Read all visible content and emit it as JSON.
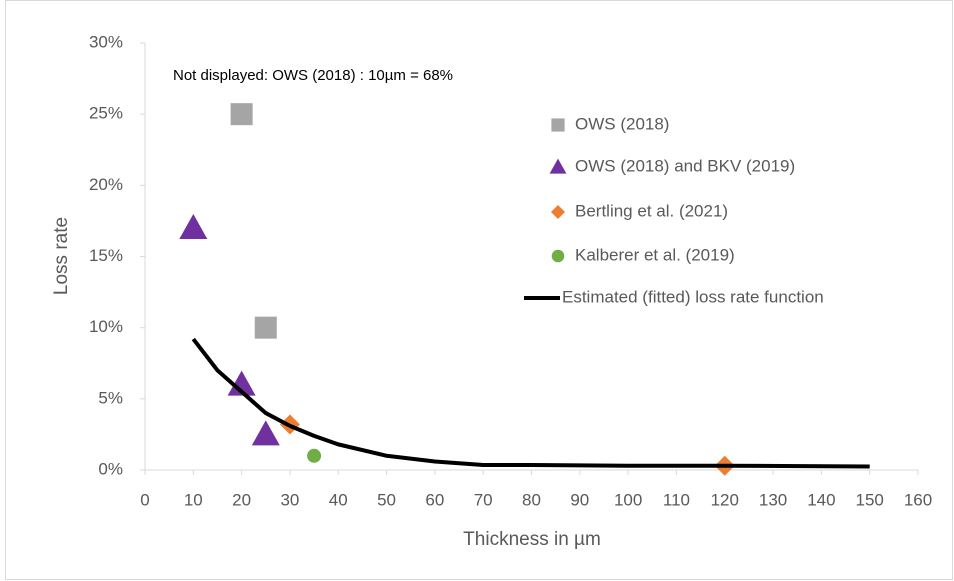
{
  "chart_data": {
    "type": "scatter",
    "annotation": "Not displayed: OWS (2018) : 10µm  = 68%",
    "xlabel": "Thickness in µm",
    "ylabel": "Loss rate",
    "xlim": [
      0,
      160
    ],
    "xticks": [
      0,
      10,
      20,
      30,
      40,
      50,
      60,
      70,
      80,
      90,
      100,
      110,
      120,
      130,
      140,
      150,
      160
    ],
    "ylim": [
      0,
      30
    ],
    "yticks": [
      {
        "value": 0,
        "label": "0%"
      },
      {
        "value": 5,
        "label": "5%"
      },
      {
        "value": 10,
        "label": "10%"
      },
      {
        "value": 15,
        "label": "15%"
      },
      {
        "value": 20,
        "label": "20%"
      },
      {
        "value": 25,
        "label": "25%"
      },
      {
        "value": 30,
        "label": "30%"
      }
    ],
    "legend": "right",
    "series": [
      {
        "name": "OWS (2018)",
        "marker": "square",
        "color": "#a5a5a5",
        "x": [
          20,
          25
        ],
        "values": [
          25,
          10
        ]
      },
      {
        "name": "OWS (2018) and BKV (2019)",
        "marker": "triangle",
        "color": "#7030a0",
        "x": [
          10,
          20,
          25
        ],
        "values": [
          17,
          6,
          2.5
        ]
      },
      {
        "name": "Bertling et al. (2021)",
        "marker": "diamond",
        "color": "#ed7d31",
        "x": [
          30,
          120
        ],
        "values": [
          3.2,
          0.3
        ]
      },
      {
        "name": "Kalberer et al. (2019)",
        "marker": "circle",
        "color": "#70ad47",
        "x": [
          35
        ],
        "values": [
          1
        ]
      },
      {
        "name": "Estimated (fitted) loss rate function",
        "marker": "line",
        "color": "#000000",
        "x": [
          10,
          15,
          20,
          25,
          30,
          35,
          40,
          50,
          60,
          70,
          80,
          100,
          120,
          150
        ],
        "values": [
          9.2,
          7,
          5.5,
          4,
          3.1,
          2.4,
          1.8,
          1,
          0.6,
          0.35,
          0.35,
          0.3,
          0.3,
          0.25
        ]
      }
    ]
  }
}
